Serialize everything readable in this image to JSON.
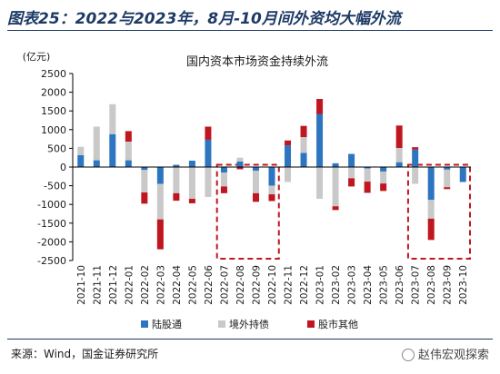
{
  "header": {
    "title": "图表25：2022与2023年，8月-10月间外资均大幅外流"
  },
  "source": "来源：Wind，国金证券研究所",
  "watermark": "赵伟宏观探索",
  "chart_data": {
    "type": "bar",
    "stacked": true,
    "title": "国内资本市场资金持续外流",
    "unit_label": "(亿元)",
    "ylim": [
      -2500,
      2500
    ],
    "yticks": [
      -2500,
      -2000,
      -1500,
      -1000,
      -500,
      0,
      500,
      1000,
      1500,
      2000,
      2500
    ],
    "categories": [
      "2021-10",
      "2021-11",
      "2021-12",
      "2022-01",
      "2022-02",
      "2022-03",
      "2022-04",
      "2022-05",
      "2022-06",
      "2022-07",
      "2022-08",
      "2022-09",
      "2022-10",
      "2022-11",
      "2022-12",
      "2023-01",
      "2023-02",
      "2023-03",
      "2023-04",
      "2023-05",
      "2023-06",
      "2023-07",
      "2023-08",
      "2023-09",
      "2023-10"
    ],
    "series": [
      {
        "name": "陆股通",
        "color": "#2e75c0",
        "values": [
          320,
          180,
          880,
          180,
          -80,
          -450,
          60,
          170,
          730,
          -150,
          150,
          -100,
          -500,
          580,
          380,
          1420,
          100,
          350,
          -40,
          -120,
          130,
          470,
          -880,
          -70,
          -400
        ]
      },
      {
        "name": "境外持债",
        "color": "#c9c9c9",
        "values": [
          220,
          900,
          800,
          500,
          -600,
          -950,
          -700,
          -850,
          -800,
          -370,
          100,
          -600,
          -230,
          -400,
          420,
          -850,
          -1050,
          -300,
          -350,
          -320,
          380,
          -450,
          -500,
          -470,
          0
        ]
      },
      {
        "name": "股市其他",
        "color": "#c0161f",
        "values": [
          0,
          0,
          0,
          280,
          -300,
          -800,
          -200,
          -120,
          350,
          -180,
          -60,
          -230,
          -180,
          130,
          300,
          400,
          -100,
          -220,
          -300,
          -200,
          600,
          60,
          -570,
          -50,
          0
        ]
      }
    ],
    "highlight_boxes": [
      [
        "2022-07",
        "2022-10"
      ],
      [
        "2023-07",
        "2023-10"
      ]
    ],
    "grid": false,
    "legend_position": "bottom"
  }
}
